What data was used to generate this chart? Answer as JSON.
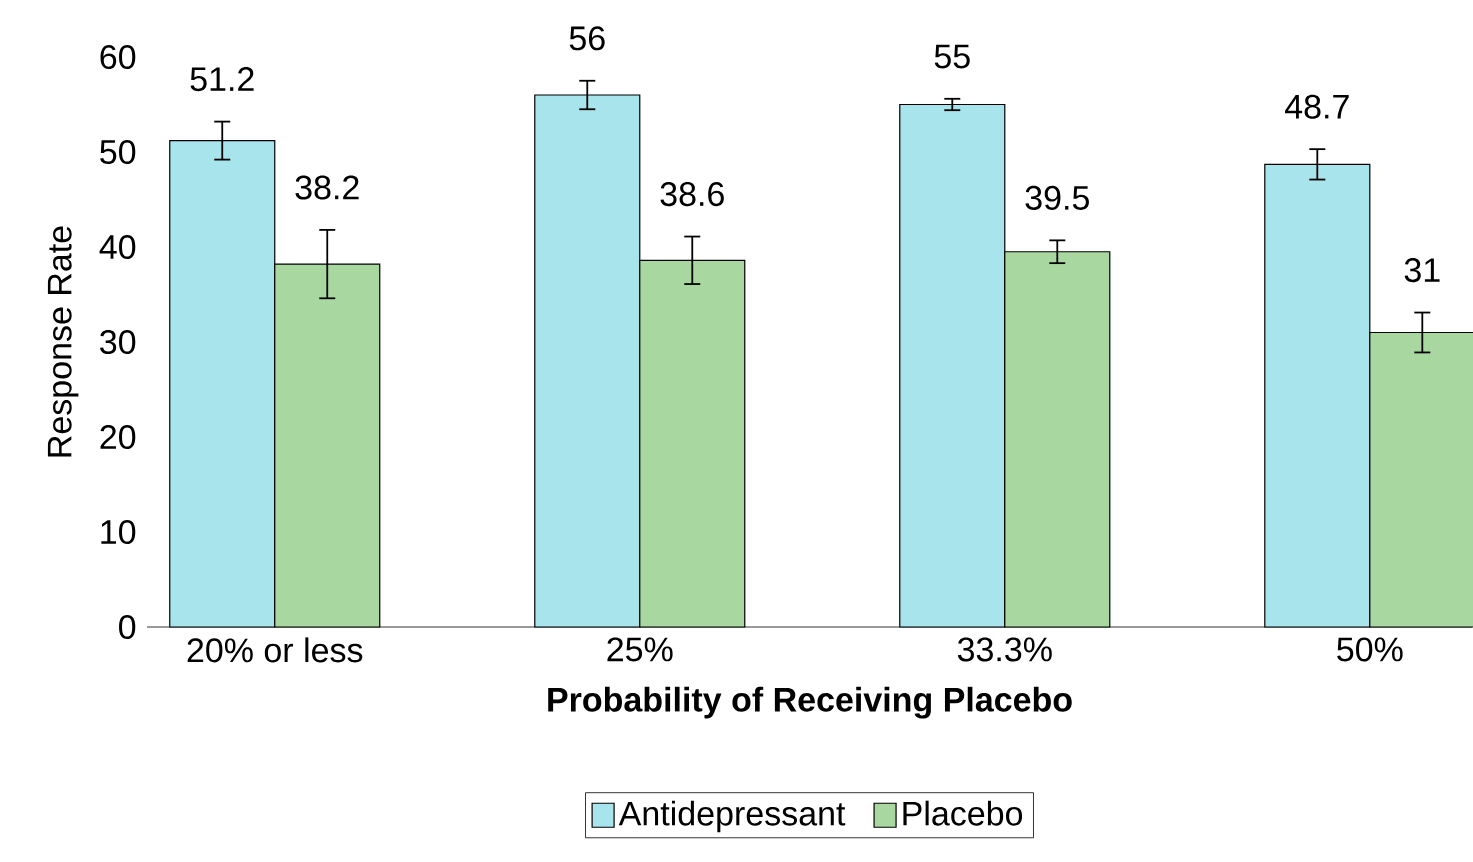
{
  "chart_data": {
    "type": "bar",
    "xlabel": "Probability of Receiving Placebo",
    "ylabel": "Response Rate",
    "categories": [
      "20% or less",
      "25%",
      "33.3%",
      "50%"
    ],
    "series": [
      {
        "name": "Antidepressant",
        "color": "#a8e4ec",
        "values": [
          51.2,
          56,
          55,
          48.7
        ],
        "errors": [
          2,
          1.5,
          0.6,
          1.6
        ]
      },
      {
        "name": "Placebo",
        "color": "#a8d8a0",
        "values": [
          38.2,
          38.6,
          39.5,
          31
        ],
        "errors": [
          3.6,
          2.5,
          1.2,
          2.1
        ]
      }
    ],
    "ylim": [
      0,
      60
    ],
    "yticks": [
      0,
      10,
      20,
      30,
      40,
      50,
      60
    ],
    "data_labels": true,
    "grid": false,
    "legend": "bottom"
  }
}
